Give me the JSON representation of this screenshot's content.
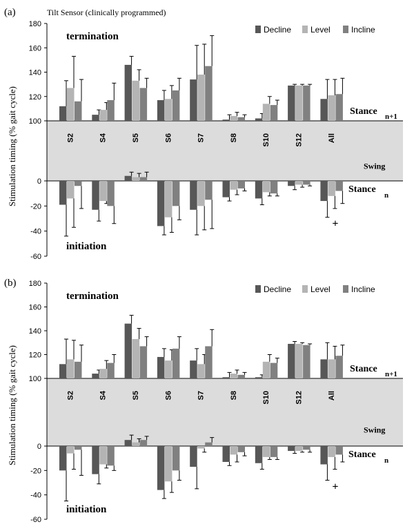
{
  "figure_ylabel": "Stimulation timing (% gait cycle)",
  "colors": {
    "decline": "#575757",
    "level": "#b4b4b4",
    "incline": "#808080",
    "swing_band": "#dcdcdc"
  },
  "legend": [
    "Decline",
    "Level",
    "Incline"
  ],
  "chart_data": [
    {
      "type": "bar",
      "panel_label": "(a)",
      "title": "Tilt Sensor (clinically programmed)",
      "categories": [
        "S2",
        "S4",
        "S5",
        "S6",
        "S7",
        "S8",
        "S10",
        "S12",
        "All"
      ],
      "ylim": [
        -60,
        180
      ],
      "yticks": [
        "-60",
        "-40",
        "-20",
        "0",
        "100",
        "120",
        "140",
        "160",
        "180"
      ],
      "annotations": {
        "termination": "termination",
        "initiation": "initiation",
        "swing": "Swing",
        "stance_n1": "Stance",
        "stance_n1_sub": "n+1",
        "stance_n": "Stance",
        "stance_n_sub": "n",
        "plus": "+"
      },
      "termination_series": [
        {
          "name": "Decline",
          "values": [
            112,
            105,
            146,
            117,
            134,
            101,
            102,
            129,
            118
          ],
          "err": [
            21,
            4,
            7,
            8,
            28,
            4,
            4,
            1,
            16
          ]
        },
        {
          "name": "Level",
          "values": [
            127,
            109,
            133,
            118,
            138,
            104,
            114,
            129,
            121
          ],
          "err": [
            26,
            6,
            9,
            11,
            25,
            3,
            6,
            1,
            13
          ]
        },
        {
          "name": "Incline",
          "values": [
            116,
            117,
            127,
            125,
            145,
            103,
            113,
            129,
            122
          ],
          "err": [
            18,
            14,
            8,
            10,
            25,
            2,
            4,
            1,
            13
          ]
        }
      ],
      "initiation_series": [
        {
          "name": "Decline",
          "values": [
            -19,
            -23,
            4,
            -36,
            -23,
            -13,
            -14,
            -4,
            -16
          ],
          "err": [
            25,
            9,
            3,
            7,
            20,
            3,
            5,
            3,
            13
          ]
        },
        {
          "name": "Level",
          "values": [
            -14,
            -16,
            3,
            -29,
            -20,
            -7,
            -9,
            -3,
            -12
          ],
          "err": [
            23,
            2,
            3,
            12,
            19,
            4,
            3,
            2,
            10
          ]
        },
        {
          "name": "Incline",
          "values": [
            -4,
            -20,
            3,
            -20,
            -15,
            -6,
            -10,
            -3,
            -8
          ],
          "err": [
            18,
            14,
            4,
            11,
            23,
            2,
            2,
            1,
            10
          ]
        }
      ]
    },
    {
      "type": "bar",
      "panel_label": "(b)",
      "categories": [
        "S2",
        "S4",
        "S5",
        "S6",
        "S7",
        "S8",
        "S10",
        "S12",
        "All"
      ],
      "ylim": [
        -60,
        180
      ],
      "yticks": [
        "-60",
        "-40",
        "-20",
        "0",
        "100",
        "120",
        "140",
        "160",
        "180"
      ],
      "annotations": {
        "termination": "termination",
        "initiation": "initiation",
        "swing": "Swing",
        "stance_n1": "Stance",
        "stance_n1_sub": "n+1",
        "stance_n": "Stance",
        "stance_n_sub": "n",
        "plus": "+"
      },
      "termination_series": [
        {
          "name": "Decline",
          "values": [
            112,
            104,
            146,
            118,
            115,
            101,
            101,
            129,
            116
          ],
          "err": [
            21,
            3,
            7,
            7,
            10,
            4,
            2,
            2,
            14
          ]
        },
        {
          "name": "Level",
          "values": [
            116,
            108,
            133,
            115,
            112,
            104,
            114,
            129,
            116
          ],
          "err": [
            16,
            7,
            9,
            9,
            8,
            3,
            6,
            1,
            11
          ]
        },
        {
          "name": "Incline",
          "values": [
            114,
            113,
            127,
            125,
            127,
            103,
            113,
            128,
            119
          ],
          "err": [
            14,
            7,
            8,
            10,
            14,
            2,
            4,
            1,
            9
          ]
        }
      ],
      "initiation_series": [
        {
          "name": "Decline",
          "values": [
            -20,
            -23,
            5,
            -36,
            -17,
            -13,
            -14,
            -4,
            -15
          ],
          "err": [
            25,
            8,
            4,
            7,
            18,
            3,
            5,
            2,
            13
          ]
        },
        {
          "name": "Level",
          "values": [
            -6,
            -15,
            3,
            -29,
            -2,
            -7,
            -9,
            -4,
            -9
          ],
          "err": [
            13,
            3,
            3,
            9,
            3,
            6,
            2,
            1,
            10
          ]
        },
        {
          "name": "Incline",
          "values": [
            -3,
            -16,
            5,
            -20,
            3,
            -5,
            -9,
            -3,
            -7
          ],
          "err": [
            21,
            4,
            3,
            8,
            4,
            3,
            2,
            2,
            6
          ]
        }
      ]
    }
  ]
}
